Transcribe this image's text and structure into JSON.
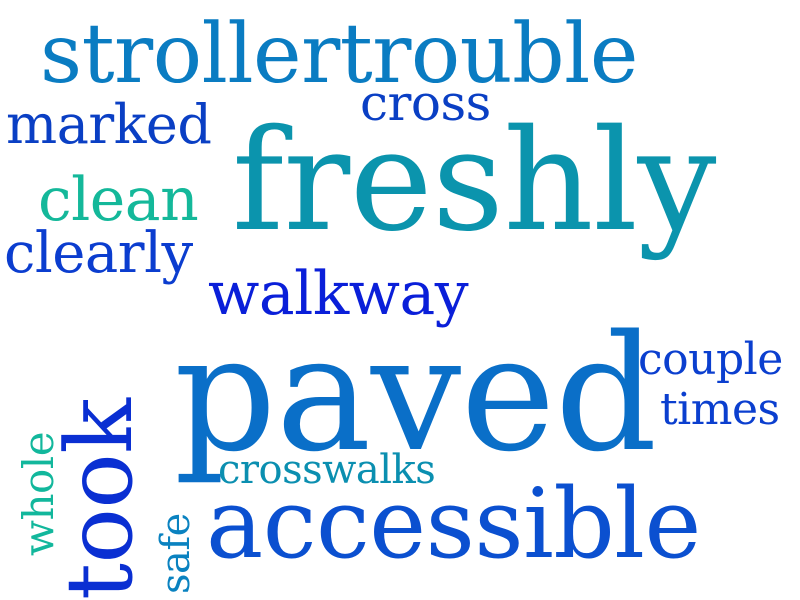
{
  "words": [
    {
      "text": "strollertrouble",
      "color": "#0a7cc2"
    },
    {
      "text": "cross",
      "color": "#0a3fc4"
    },
    {
      "text": "marked",
      "color": "#0a3fc4"
    },
    {
      "text": "freshly",
      "color": "#0b94ad"
    },
    {
      "text": "clean",
      "color": "#14b89a"
    },
    {
      "text": "clearly",
      "color": "#0b3dcf"
    },
    {
      "text": "walkway",
      "color": "#0a1fd9"
    },
    {
      "text": "paved",
      "color": "#0a6fc8"
    },
    {
      "text": "couple",
      "color": "#0b3fcf"
    },
    {
      "text": "times",
      "color": "#0b3fcf"
    },
    {
      "text": "crosswalks",
      "color": "#0b8fb0"
    },
    {
      "text": "accessible",
      "color": "#0b50d0"
    },
    {
      "text": "took",
      "color": "#0a2fd2"
    },
    {
      "text": "whole",
      "color": "#12b79c"
    },
    {
      "text": "safe",
      "color": "#0a82c0"
    }
  ]
}
